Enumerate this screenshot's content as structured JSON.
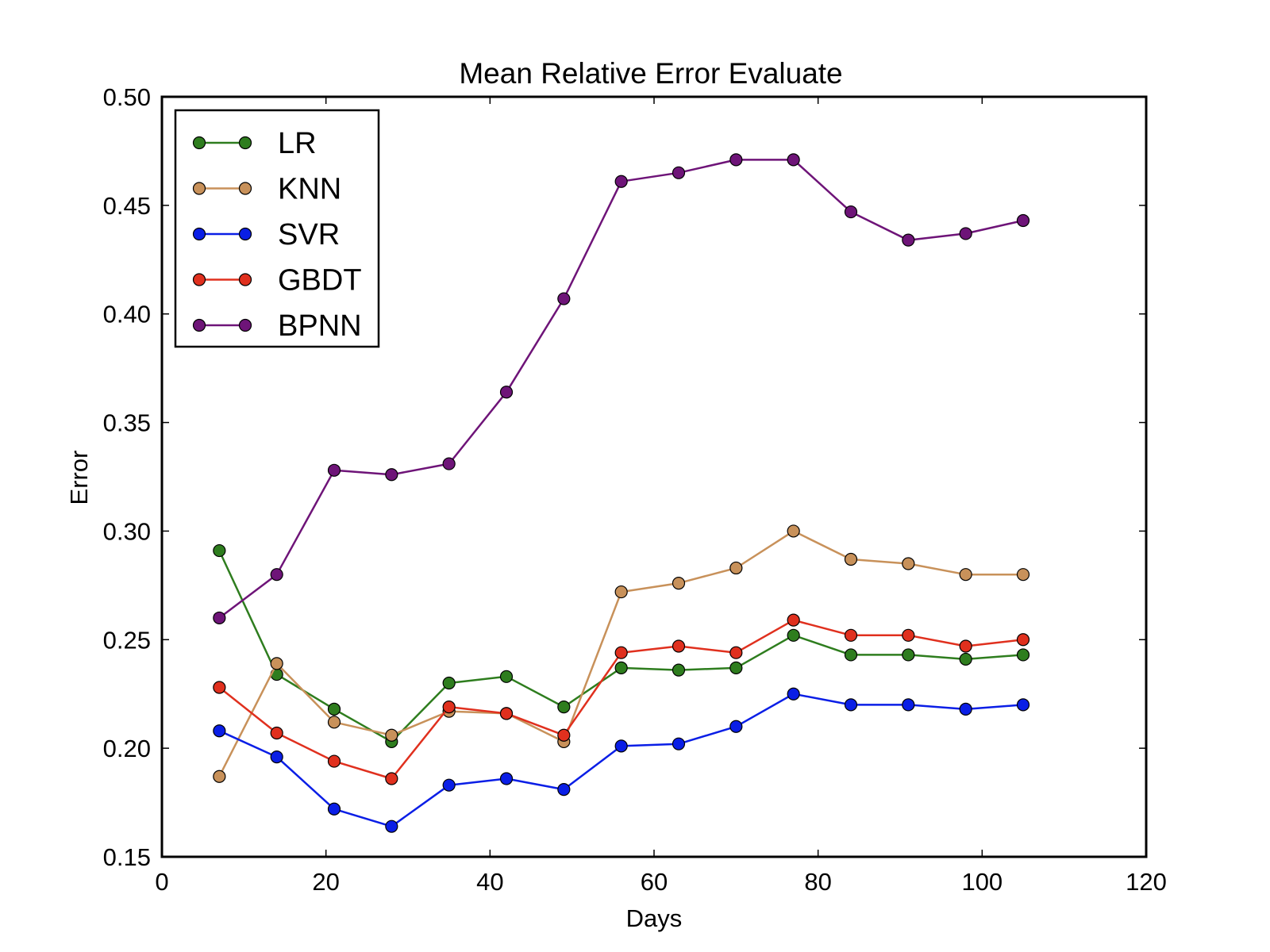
{
  "chart_data": {
    "type": "line",
    "title": "Mean Relative Error Evaluate",
    "xlabel": "Days",
    "ylabel": "Error",
    "xlim": [
      0,
      120
    ],
    "ylim": [
      0.15,
      0.5
    ],
    "xticks": [
      0,
      20,
      40,
      60,
      80,
      100,
      120
    ],
    "yticks": [
      0.15,
      0.2,
      0.25,
      0.3,
      0.35,
      0.4,
      0.45,
      0.5
    ],
    "ytick_labels": [
      "0.15",
      "0.20",
      "0.25",
      "0.30",
      "0.35",
      "0.40",
      "0.45",
      "0.50"
    ],
    "grid": false,
    "legend_position": "upper-left",
    "x": [
      7,
      14,
      21,
      28,
      35,
      42,
      49,
      56,
      63,
      70,
      77,
      84,
      91,
      98,
      105
    ],
    "series": [
      {
        "name": "LR",
        "color": "#2e7d1e",
        "values": [
          0.291,
          0.234,
          0.218,
          0.203,
          0.23,
          0.233,
          0.219,
          0.237,
          0.236,
          0.237,
          0.252,
          0.243,
          0.243,
          0.241,
          0.243
        ]
      },
      {
        "name": "KNN",
        "color": "#c8915a",
        "values": [
          0.187,
          0.239,
          0.212,
          0.206,
          0.217,
          0.216,
          0.203,
          0.272,
          0.276,
          0.283,
          0.3,
          0.287,
          0.285,
          0.28,
          0.28
        ]
      },
      {
        "name": "SVR",
        "color": "#0a1ee6",
        "values": [
          0.208,
          0.196,
          0.172,
          0.164,
          0.183,
          0.186,
          0.181,
          0.201,
          0.202,
          0.21,
          0.225,
          0.22,
          0.22,
          0.218,
          0.22
        ]
      },
      {
        "name": "GBDT",
        "color": "#e0301e",
        "values": [
          0.228,
          0.207,
          0.194,
          0.186,
          0.219,
          0.216,
          0.206,
          0.244,
          0.247,
          0.244,
          0.259,
          0.252,
          0.252,
          0.247,
          0.25
        ]
      },
      {
        "name": "BPNN",
        "color": "#6e1478",
        "values": [
          0.26,
          0.28,
          0.328,
          0.326,
          0.331,
          0.364,
          0.407,
          0.461,
          0.465,
          0.471,
          0.471,
          0.447,
          0.434,
          0.437,
          0.443
        ]
      }
    ]
  }
}
